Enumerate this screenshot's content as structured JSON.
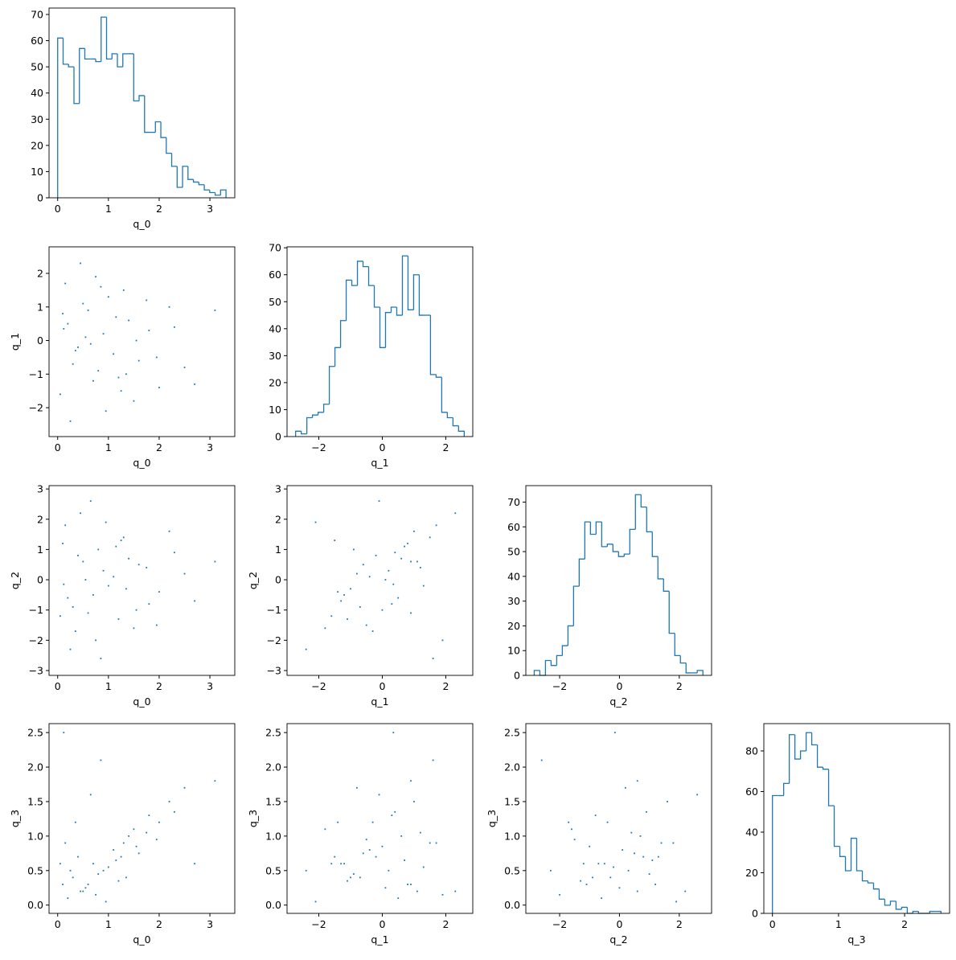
{
  "chart_data": [
    {
      "type": "histogram",
      "xlabel": "q_0",
      "color": "#1f77b4",
      "bins": [
        0,
        0.107,
        0.214,
        0.321,
        0.428,
        0.535,
        0.642,
        0.749,
        0.856,
        0.963,
        1.07,
        1.177,
        1.284,
        1.391,
        1.498,
        1.605,
        1.712,
        1.819,
        1.926,
        2.033,
        2.14,
        2.247,
        2.354,
        2.461,
        2.568,
        2.675,
        2.782,
        2.889,
        2.996,
        3.103,
        3.21,
        3.317
      ],
      "values": [
        61,
        51,
        50,
        36,
        57,
        53,
        53,
        52,
        69,
        53,
        55,
        50,
        55,
        55,
        37,
        39,
        25,
        25,
        29,
        23,
        17,
        12,
        4,
        12,
        7,
        6,
        5,
        3,
        2,
        1,
        3
      ],
      "xlim": [
        -0.17,
        3.49
      ],
      "xticks": [
        0,
        1,
        2,
        3
      ],
      "ylim": [
        0,
        72.45
      ],
      "yticks": [
        0,
        10,
        20,
        30,
        40,
        50,
        60,
        70
      ]
    },
    {
      "type": "scatter",
      "xlabel": "q_0",
      "ylabel": "q_1",
      "color": "#1f77b4",
      "x": [
        0.1,
        0.3,
        0.5,
        0.7,
        0.9,
        1.1,
        1.3,
        1.5,
        0.2,
        0.4,
        0.6,
        0.8,
        1.0,
        1.2,
        1.4,
        1.6,
        1.8,
        2.0,
        2.2,
        2.5,
        0.05,
        0.15,
        0.35,
        0.55,
        0.75,
        0.95,
        1.15,
        1.35,
        1.55,
        1.75,
        1.95,
        2.3,
        2.7,
        3.1,
        0.25,
        0.45,
        0.65,
        0.85,
        1.25,
        0.12
      ],
      "y": [
        0.8,
        -0.7,
        1.1,
        -1.2,
        0.2,
        -0.4,
        1.5,
        -1.8,
        0.5,
        -0.2,
        0.9,
        -0.9,
        1.3,
        -1.1,
        0.6,
        -0.6,
        0.3,
        -1.4,
        1.0,
        -0.8,
        -1.6,
        1.7,
        -0.3,
        0.1,
        1.9,
        -2.1,
        0.7,
        -1.0,
        0.0,
        1.2,
        -0.5,
        0.4,
        -1.3,
        0.9,
        -2.4,
        2.3,
        -0.1,
        1.6,
        -1.5,
        0.35
      ],
      "xlim": [
        -0.17,
        3.49
      ],
      "xticks": [
        0,
        1,
        2,
        3
      ],
      "ylim": [
        -2.86,
        2.79
      ],
      "yticks": [
        {
          "value": -2,
          "label": "−2"
        },
        {
          "value": -1,
          "label": "−1"
        },
        0,
        1,
        2
      ]
    },
    {
      "type": "histogram",
      "xlabel": "q_1",
      "color": "#1f77b4",
      "bins": [
        -2.73,
        -2.553,
        -2.376,
        -2.199,
        -2.022,
        -1.845,
        -1.668,
        -1.491,
        -1.314,
        -1.137,
        -0.96,
        -0.783,
        -0.606,
        -0.429,
        -0.252,
        -0.075,
        0.102,
        0.279,
        0.456,
        0.633,
        0.81,
        0.987,
        1.164,
        1.341,
        1.518,
        1.695,
        1.872,
        2.049,
        2.226,
        2.403,
        2.58
      ],
      "values": [
        2,
        1,
        7,
        8,
        9,
        12,
        26,
        33,
        43,
        58,
        56,
        65,
        63,
        56,
        48,
        33,
        46,
        48,
        45,
        67,
        47,
        60,
        45,
        45,
        23,
        22,
        9,
        7,
        4,
        2
      ],
      "xlim": [
        -3.0,
        2.85
      ],
      "xticks": [
        {
          "value": -2,
          "label": "−2"
        },
        0,
        2
      ],
      "ylim": [
        0,
        70.35
      ],
      "yticks": [
        0,
        10,
        20,
        30,
        40,
        50,
        60,
        70
      ]
    },
    {
      "type": "scatter",
      "xlabel": "q_0",
      "ylabel": "q_2",
      "color": "#1f77b4",
      "x": [
        0.1,
        0.3,
        0.5,
        0.7,
        0.9,
        1.1,
        1.3,
        1.5,
        0.2,
        0.4,
        0.6,
        0.8,
        1.0,
        1.2,
        1.4,
        1.6,
        1.8,
        2.0,
        2.2,
        2.5,
        0.05,
        0.15,
        0.35,
        0.55,
        0.75,
        0.95,
        1.15,
        1.35,
        1.55,
        1.75,
        1.95,
        2.3,
        2.7,
        3.1,
        0.25,
        0.45,
        0.65,
        0.85,
        1.25,
        0.12
      ],
      "y": [
        1.2,
        -0.9,
        0.6,
        -0.5,
        0.3,
        0.1,
        1.4,
        -1.6,
        -0.6,
        0.8,
        -1.1,
        1.0,
        -0.2,
        -1.3,
        0.7,
        0.5,
        -0.8,
        -0.4,
        1.6,
        0.2,
        -1.2,
        1.8,
        -1.7,
        0.0,
        -2.0,
        1.9,
        1.1,
        -0.3,
        -1.0,
        0.4,
        -1.5,
        0.9,
        -0.7,
        0.6,
        -2.3,
        2.2,
        2.6,
        -2.6,
        1.3,
        -0.15
      ],
      "xlim": [
        -0.17,
        3.49
      ],
      "xticks": [
        0,
        1,
        2,
        3
      ],
      "ylim": [
        -3.16,
        3.11
      ],
      "yticks": [
        {
          "value": -3,
          "label": "−3"
        },
        {
          "value": -2,
          "label": "−2"
        },
        {
          "value": -1,
          "label": "−1"
        },
        0,
        1,
        2,
        3
      ]
    },
    {
      "type": "scatter",
      "xlabel": "q_1",
      "ylabel": "q_2",
      "color": "#1f77b4",
      "x": [
        0.8,
        -0.7,
        1.1,
        -1.2,
        0.2,
        -0.4,
        1.5,
        -1.8,
        0.5,
        -0.2,
        0.9,
        -0.9,
        1.3,
        -1.1,
        0.6,
        -0.6,
        0.3,
        -1.4,
        1.0,
        -0.8,
        -1.6,
        1.7,
        -0.3,
        0.1,
        1.9,
        -2.1,
        0.7,
        -1.0,
        0.0,
        1.2,
        -0.5,
        0.4,
        -1.3,
        0.9,
        -2.4,
        2.3,
        -0.1,
        1.6,
        -1.5,
        0.35
      ],
      "y": [
        1.2,
        -0.9,
        0.6,
        -0.5,
        0.3,
        0.1,
        1.4,
        -1.6,
        -0.6,
        0.8,
        -1.1,
        1.0,
        -0.2,
        -1.3,
        0.7,
        0.5,
        -0.8,
        -0.4,
        1.6,
        0.2,
        -1.2,
        1.8,
        -1.7,
        0.0,
        -2.0,
        1.9,
        1.1,
        -0.3,
        -1.0,
        0.4,
        -1.5,
        0.9,
        -0.7,
        0.6,
        -2.3,
        2.2,
        2.6,
        -2.6,
        1.3,
        -0.15
      ],
      "xlim": [
        -3.0,
        2.85
      ],
      "xticks": [
        {
          "value": -2,
          "label": "−2"
        },
        0,
        2
      ],
      "ylim": [
        -3.16,
        3.11
      ],
      "yticks": [
        {
          "value": -3,
          "label": "−3"
        },
        {
          "value": -2,
          "label": "−2"
        },
        {
          "value": -1,
          "label": "−1"
        },
        0,
        1,
        2,
        3
      ]
    },
    {
      "type": "histogram",
      "xlabel": "q_2",
      "color": "#1f77b4",
      "bins": [
        -2.85,
        -2.662,
        -2.474,
        -2.286,
        -2.098,
        -1.91,
        -1.722,
        -1.534,
        -1.346,
        -1.158,
        -0.97,
        -0.782,
        -0.594,
        -0.406,
        -0.218,
        -0.03,
        0.158,
        0.346,
        0.534,
        0.722,
        0.91,
        1.098,
        1.286,
        1.474,
        1.662,
        1.85,
        2.038,
        2.226,
        2.414,
        2.602,
        2.79
      ],
      "values": [
        2,
        0,
        6,
        4,
        8,
        12,
        20,
        36,
        47,
        62,
        57,
        62,
        52,
        53,
        50,
        48,
        49,
        59,
        73,
        68,
        58,
        48,
        39,
        34,
        17,
        8,
        5,
        1,
        1,
        2
      ],
      "xlim": [
        -3.13,
        3.08
      ],
      "xticks": [
        {
          "value": -2,
          "label": "−2"
        },
        0,
        2
      ],
      "ylim": [
        0,
        76.65
      ],
      "yticks": [
        0,
        10,
        20,
        30,
        40,
        50,
        60,
        70
      ]
    },
    {
      "type": "scatter",
      "xlabel": "q_0",
      "ylabel": "q_3",
      "color": "#1f77b4",
      "x": [
        0.1,
        0.3,
        0.5,
        0.7,
        0.9,
        1.1,
        1.3,
        1.5,
        0.2,
        0.4,
        0.6,
        0.8,
        1.0,
        1.2,
        1.4,
        1.6,
        1.8,
        2.0,
        2.2,
        2.5,
        0.05,
        0.15,
        0.35,
        0.55,
        0.75,
        0.95,
        1.15,
        1.35,
        1.55,
        1.75,
        1.95,
        2.3,
        2.7,
        3.1,
        0.25,
        0.45,
        0.65,
        0.85,
        1.25,
        0.12
      ],
      "y": [
        0.3,
        0.4,
        0.2,
        0.6,
        0.5,
        0.8,
        0.9,
        1.1,
        0.1,
        0.7,
        0.3,
        0.45,
        0.55,
        0.35,
        1.0,
        0.75,
        1.3,
        1.2,
        1.5,
        1.7,
        0.6,
        0.9,
        1.2,
        0.25,
        0.15,
        0.05,
        0.65,
        0.4,
        0.85,
        1.05,
        0.95,
        1.35,
        0.6,
        1.8,
        0.5,
        0.2,
        1.6,
        2.1,
        0.7,
        2.5
      ],
      "xlim": [
        -0.17,
        3.49
      ],
      "xticks": [
        0,
        1,
        2,
        3
      ],
      "ylim": [
        -0.12,
        2.63
      ],
      "yticks": [
        {
          "value": 0,
          "label": "0.0"
        },
        0.5,
        {
          "value": 1,
          "label": "1.0"
        },
        1.5,
        {
          "value": 2,
          "label": "2.0"
        },
        2.5
      ]
    },
    {
      "type": "scatter",
      "xlabel": "q_1",
      "ylabel": "q_3",
      "color": "#1f77b4",
      "x": [
        0.8,
        -0.7,
        1.1,
        -1.2,
        0.2,
        -0.4,
        1.5,
        -1.8,
        0.5,
        -0.2,
        0.9,
        -0.9,
        1.3,
        -1.1,
        0.6,
        -0.6,
        0.3,
        -1.4,
        1.0,
        -0.8,
        -1.6,
        1.7,
        -0.3,
        0.1,
        1.9,
        -2.1,
        0.7,
        -1.0,
        0.0,
        1.2,
        -0.5,
        0.4,
        -1.3,
        0.9,
        -2.4,
        2.3,
        -0.1,
        1.6,
        -1.5,
        0.35
      ],
      "y": [
        0.3,
        0.4,
        0.2,
        0.6,
        0.5,
        0.8,
        0.9,
        1.1,
        0.1,
        0.7,
        0.3,
        0.45,
        0.55,
        0.35,
        1.0,
        0.75,
        1.3,
        1.2,
        1.5,
        1.7,
        0.6,
        0.9,
        1.2,
        0.25,
        0.15,
        0.05,
        0.65,
        0.4,
        0.85,
        1.05,
        0.95,
        1.35,
        0.6,
        1.8,
        0.5,
        0.2,
        1.6,
        2.1,
        0.7,
        2.5
      ],
      "xlim": [
        -3.0,
        2.85
      ],
      "xticks": [
        {
          "value": -2,
          "label": "−2"
        },
        0,
        2
      ],
      "ylim": [
        -0.12,
        2.63
      ],
      "yticks": [
        {
          "value": 0,
          "label": "0.0"
        },
        0.5,
        {
          "value": 1,
          "label": "1.0"
        },
        1.5,
        {
          "value": 2,
          "label": "2.0"
        },
        2.5
      ]
    },
    {
      "type": "scatter",
      "xlabel": "q_2",
      "ylabel": "q_3",
      "color": "#1f77b4",
      "x": [
        1.2,
        -0.9,
        0.6,
        -0.5,
        0.3,
        0.1,
        1.4,
        -1.6,
        -0.6,
        0.8,
        -1.1,
        1.0,
        -0.2,
        -1.3,
        0.7,
        0.5,
        -0.8,
        -0.4,
        1.6,
        0.2,
        -1.2,
        1.8,
        -1.7,
        0.0,
        -2.0,
        1.9,
        1.1,
        -0.3,
        -1.0,
        0.4,
        -1.5,
        0.9,
        -0.7,
        0.6,
        -2.3,
        2.2,
        2.6,
        -2.6,
        1.3,
        -0.15
      ],
      "y": [
        0.3,
        0.4,
        0.2,
        0.6,
        0.5,
        0.8,
        0.9,
        1.1,
        0.1,
        0.7,
        0.3,
        0.45,
        0.55,
        0.35,
        1.0,
        0.75,
        1.3,
        1.2,
        1.5,
        1.7,
        0.6,
        0.9,
        1.2,
        0.25,
        0.15,
        0.05,
        0.65,
        0.4,
        0.85,
        1.05,
        0.95,
        1.35,
        0.6,
        1.8,
        0.5,
        0.2,
        1.6,
        2.1,
        0.7,
        2.5
      ],
      "xlim": [
        -3.13,
        3.08
      ],
      "xticks": [
        {
          "value": -2,
          "label": "−2"
        },
        0,
        2
      ],
      "ylim": [
        -0.12,
        2.63
      ],
      "yticks": [
        {
          "value": 0,
          "label": "0.0"
        },
        0.5,
        {
          "value": 1,
          "label": "1.0"
        },
        1.5,
        {
          "value": 2,
          "label": "2.0"
        },
        2.5
      ]
    },
    {
      "type": "histogram",
      "xlabel": "q_3",
      "color": "#1f77b4",
      "bins": [
        0,
        0.085,
        0.17,
        0.255,
        0.34,
        0.425,
        0.51,
        0.595,
        0.68,
        0.765,
        0.85,
        0.935,
        1.02,
        1.105,
        1.19,
        1.275,
        1.36,
        1.445,
        1.53,
        1.615,
        1.7,
        1.785,
        1.87,
        1.955,
        2.04,
        2.125,
        2.21,
        2.295,
        2.38,
        2.465,
        2.55
      ],
      "values": [
        58,
        58,
        64,
        88,
        76,
        80,
        89,
        83,
        72,
        71,
        53,
        33,
        28,
        21,
        37,
        21,
        16,
        15,
        12,
        7,
        4,
        6,
        2,
        3,
        0,
        1,
        0,
        0,
        1,
        1
      ],
      "xlim": [
        -0.13,
        2.68
      ],
      "xticks": [
        0,
        1,
        2
      ],
      "ylim": [
        0,
        93.45
      ],
      "yticks": [
        0,
        20,
        40,
        60,
        80
      ]
    }
  ]
}
